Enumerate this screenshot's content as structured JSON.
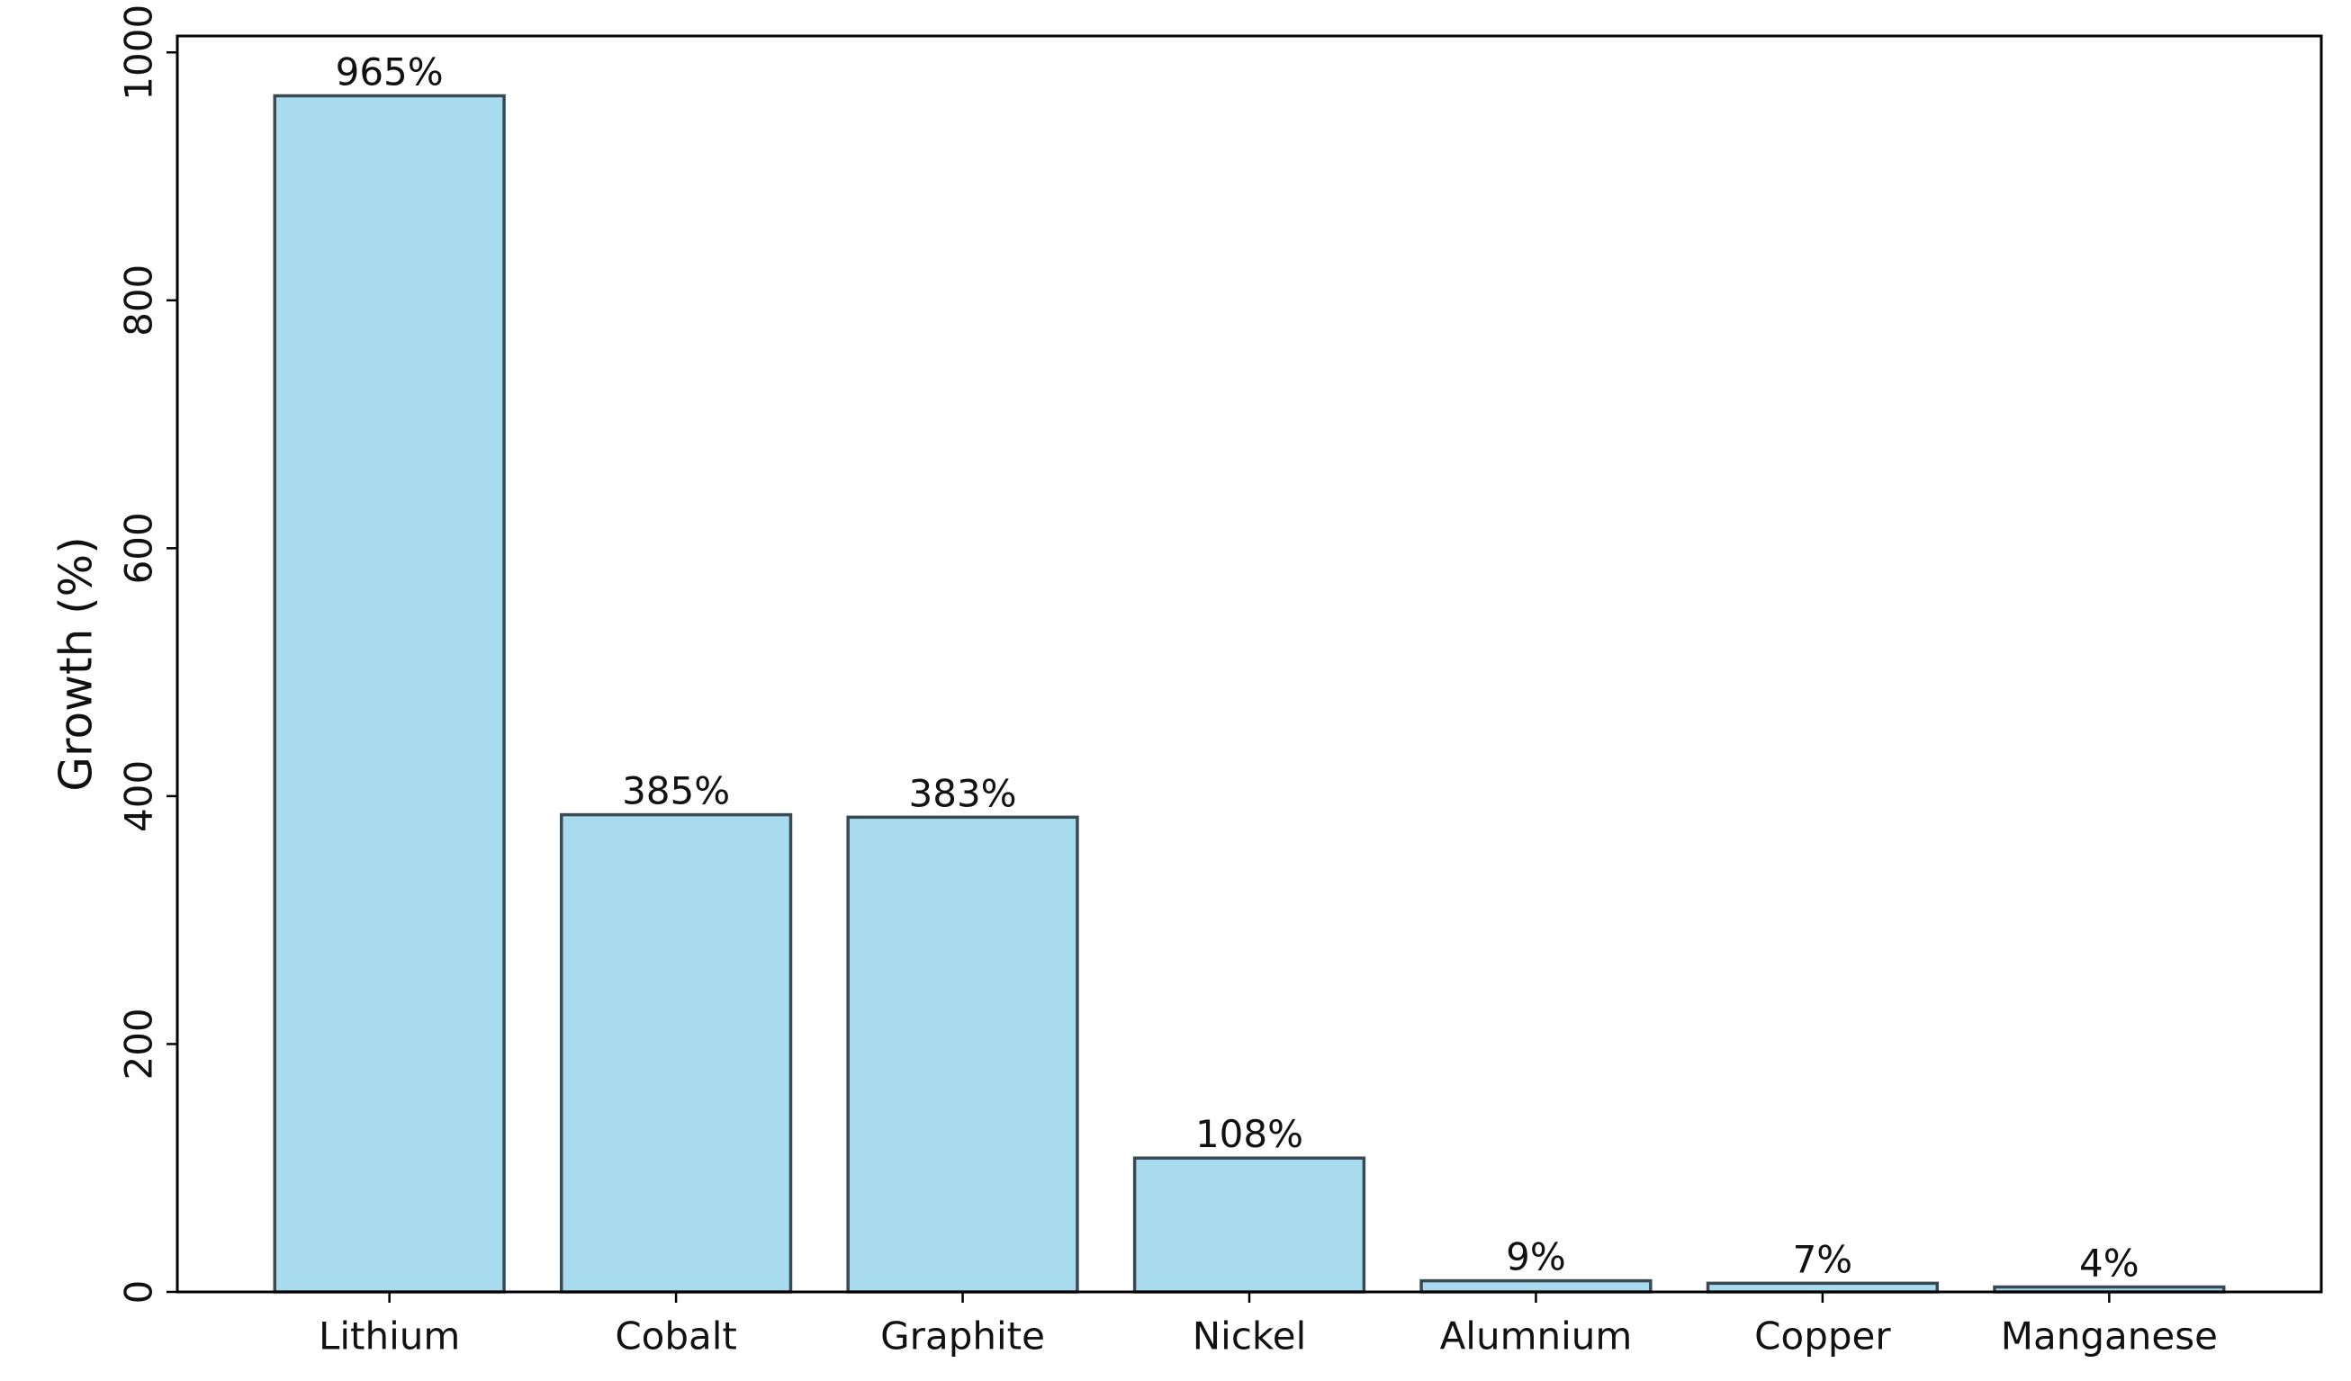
{
  "chart_data": {
    "type": "bar",
    "ylabel": "Growth (%)",
    "categories": [
      "Lithium",
      "Cobalt",
      "Graphite",
      "Nickel",
      "Alumnium",
      "Copper",
      "Manganese"
    ],
    "values": [
      965,
      385,
      383,
      108,
      9,
      7,
      4
    ],
    "value_labels": [
      "965%",
      "385%",
      "383%",
      "108%",
      "9%",
      "7%",
      "4%"
    ],
    "color": "#a8dbee",
    "edgecolor": "#3a4a55",
    "ylim": [
      0,
      1013.25
    ],
    "yticks": [
      0,
      200,
      400,
      600,
      800,
      1000
    ],
    "grid": false
  }
}
